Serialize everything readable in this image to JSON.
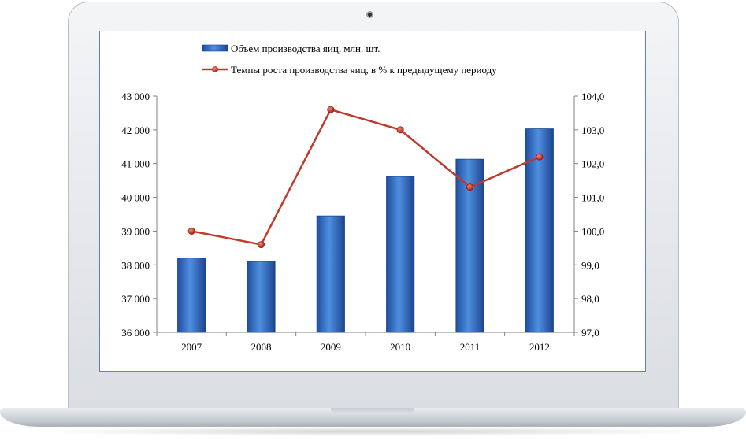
{
  "chart_data": {
    "type": "bar",
    "categories": [
      "2007",
      "2008",
      "2009",
      "2010",
      "2011",
      "2012"
    ],
    "series": [
      {
        "name": "Объем производства яиц, млн. шт.",
        "kind": "bar",
        "axis": "left",
        "color": "#3a73c9",
        "values": [
          38200,
          38100,
          39450,
          40620,
          41130,
          42030
        ]
      },
      {
        "name": "Темпы роста производства яиц, в % к предыдущему периоду",
        "kind": "line",
        "axis": "right",
        "color": "#c0392b",
        "values": [
          100.0,
          99.6,
          103.6,
          103.0,
          101.3,
          102.2
        ]
      }
    ],
    "y_left": {
      "min": 36000,
      "max": 43000,
      "ticks": [
        "36 000",
        "37 000",
        "38 000",
        "39 000",
        "40 000",
        "41 000",
        "42 000",
        "43 000"
      ]
    },
    "y_right": {
      "min": 97.0,
      "max": 104.0,
      "ticks": [
        "97,0",
        "98,0",
        "99,0",
        "100,0",
        "101,0",
        "102,0",
        "103,0",
        "104,0"
      ]
    },
    "legend": "top",
    "grid": false
  }
}
